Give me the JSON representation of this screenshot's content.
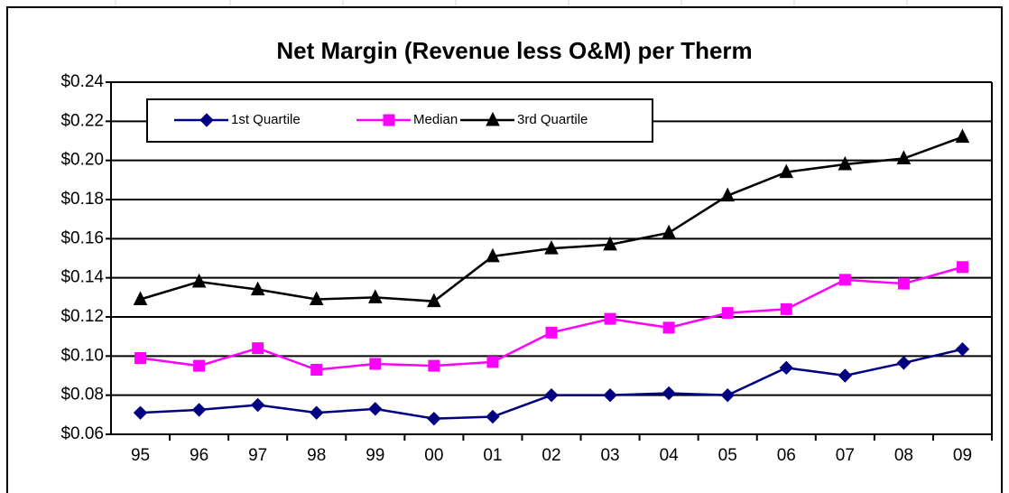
{
  "chart_data": {
    "type": "line",
    "title": "Net Margin (Revenue less O&M) per Therm",
    "categories": [
      "95",
      "96",
      "97",
      "98",
      "99",
      "00",
      "01",
      "02",
      "03",
      "04",
      "05",
      "06",
      "07",
      "08",
      "09"
    ],
    "series": [
      {
        "name": "1st Quartile",
        "color": "#000080",
        "marker": "diamond",
        "values": [
          0.071,
          0.0725,
          0.075,
          0.071,
          0.073,
          0.068,
          0.069,
          0.08,
          0.08,
          0.081,
          0.08,
          0.094,
          0.09,
          0.0965,
          0.1035
        ]
      },
      {
        "name": "Median",
        "color": "#ff00ff",
        "marker": "square",
        "values": [
          0.099,
          0.095,
          0.104,
          0.093,
          0.096,
          0.095,
          0.097,
          0.112,
          0.119,
          0.1145,
          0.122,
          0.124,
          0.139,
          0.137,
          0.1455
        ]
      },
      {
        "name": "3rd Quartile",
        "color": "#000000",
        "marker": "triangle",
        "values": [
          0.129,
          0.138,
          0.134,
          0.129,
          0.13,
          0.128,
          0.151,
          0.155,
          0.157,
          0.163,
          0.182,
          0.194,
          0.198,
          0.201,
          0.212
        ]
      }
    ],
    "ylim": [
      0.06,
      0.24
    ],
    "yticks": [
      {
        "value": 0.06,
        "label": "$0.06"
      },
      {
        "value": 0.08,
        "label": "$0.08"
      },
      {
        "value": 0.1,
        "label": "$0.10"
      },
      {
        "value": 0.12,
        "label": "$0.12"
      },
      {
        "value": 0.14,
        "label": "$0.14"
      },
      {
        "value": 0.16,
        "label": "$0.16"
      },
      {
        "value": 0.18,
        "label": "$0.18"
      },
      {
        "value": 0.2,
        "label": "$0.20"
      },
      {
        "value": 0.22,
        "label": "$0.22"
      },
      {
        "value": 0.24,
        "label": "$0.24"
      }
    ],
    "grid": true,
    "legend": "top-left"
  }
}
